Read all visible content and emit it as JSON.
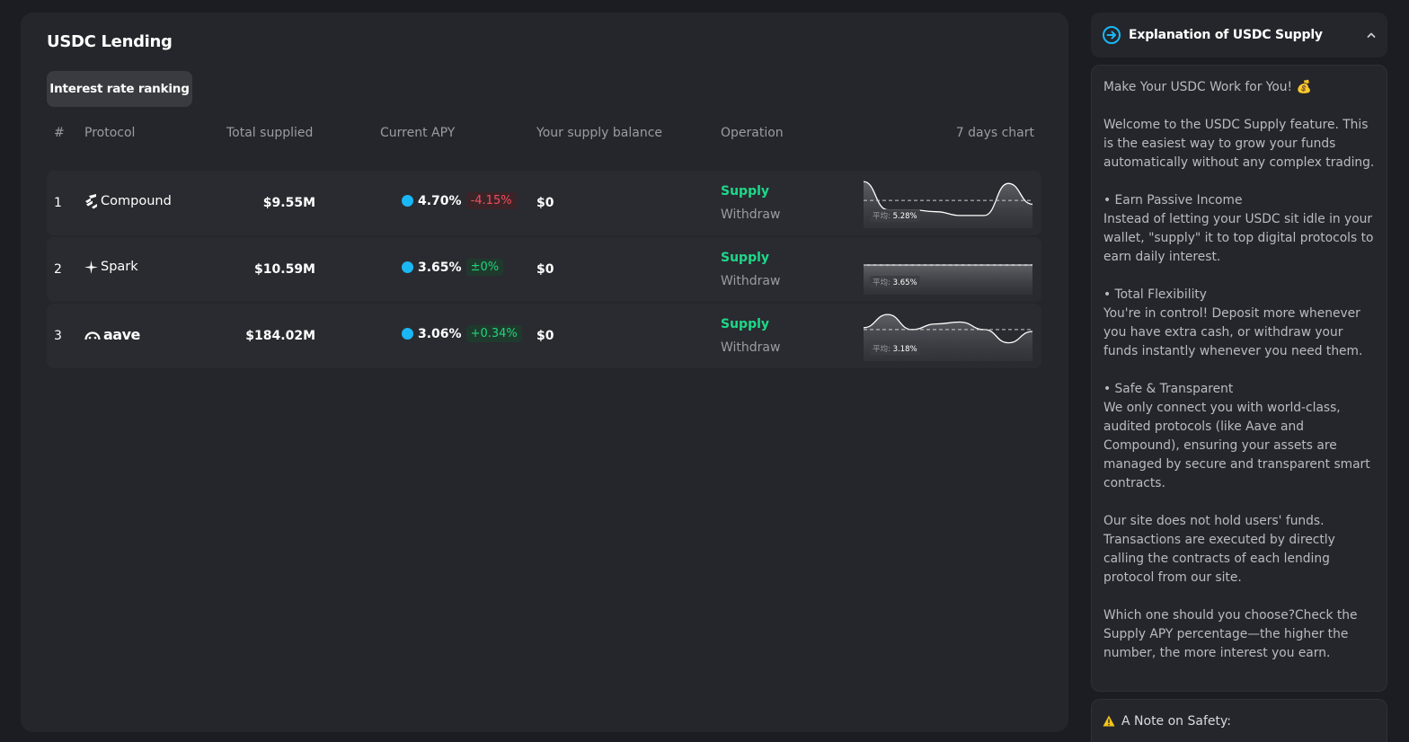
{
  "main": {
    "title": "USDC Lending",
    "tab_label": "Interest rate ranking",
    "columns": {
      "rank": "#",
      "protocol": "Protocol",
      "total_supplied": "Total supplied",
      "current_apy": "Current APY",
      "balance": "Your supply balance",
      "operation": "Operation",
      "chart": "7 days chart"
    },
    "rows": [
      {
        "rank": "1",
        "protocol": "Compound",
        "total_supplied": "$9.55M",
        "apy": "4.70%",
        "change": "-4.15%",
        "change_dir": "neg",
        "balance": "$0",
        "supply_label": "Supply",
        "withdraw_label": "Withdraw",
        "avg_label": "平均:",
        "avg_value": "5.28%",
        "spark": [
          0.95,
          0.2,
          0.2,
          0.15,
          0.05,
          0.05,
          0.9,
          0.35
        ],
        "spark_avg": 0.45
      },
      {
        "rank": "2",
        "protocol": "Spark",
        "total_supplied": "$10.59M",
        "apy": "3.65%",
        "change": "±0%",
        "change_dir": "pos",
        "balance": "$0",
        "supply_label": "Supply",
        "withdraw_label": "Withdraw",
        "avg_label": "平均:",
        "avg_value": "3.65%",
        "spark": [
          0.5,
          0.5,
          0.5,
          0.5,
          0.5,
          0.5,
          0.5,
          0.5
        ],
        "spark_avg": 0.5
      },
      {
        "rank": "3",
        "protocol": "aave",
        "total_supplied": "$184.02M",
        "apy": "3.06%",
        "change": "+0.34%",
        "change_dir": "pos",
        "balance": "$0",
        "supply_label": "Supply",
        "withdraw_label": "Withdraw",
        "avg_label": "平均:",
        "avg_value": "3.18%",
        "spark": [
          0.6,
          0.95,
          0.55,
          0.7,
          0.75,
          0.55,
          0.2,
          0.5
        ],
        "spark_avg": 0.55
      }
    ],
    "colors": {
      "accent_green": "#1ed88a",
      "negative": "#f04e5e",
      "apy_dot": "#1ab7f5"
    }
  },
  "sidebar": {
    "title": "Explanation of USDC Supply",
    "icon": "arrow-circle-icon",
    "intro": "Make Your USDC Work for You! 💰",
    "welcome": "Welcome to the USDC Supply feature. This is the easiest way to grow your funds automatically without any complex trading.",
    "passive_title": "• Earn Passive Income",
    "passive_text": "Instead of letting your USDC sit idle in your wallet, \"supply\" it to top digital protocols to earn daily interest.",
    "flex_title": "• Total Flexibility",
    "flex_text": "You're in control! Deposit more whenever you have extra cash, or withdraw your funds instantly whenever you need them.",
    "safe_title": "• Safe & Transparent",
    "safe_text": "We only connect you with world-class, audited protocols (like Aave and Compound), ensuring your assets are managed by secure and transparent smart contracts.",
    "funds_note": "Our site does not hold users' funds. Transactions are executed by directly calling the contracts of each lending protocol from our site.",
    "choose_note": "Which one should you choose?Check the Supply APY percentage—the higher the number, the more interest you earn.",
    "safety_title": "A Note on Safety:"
  }
}
